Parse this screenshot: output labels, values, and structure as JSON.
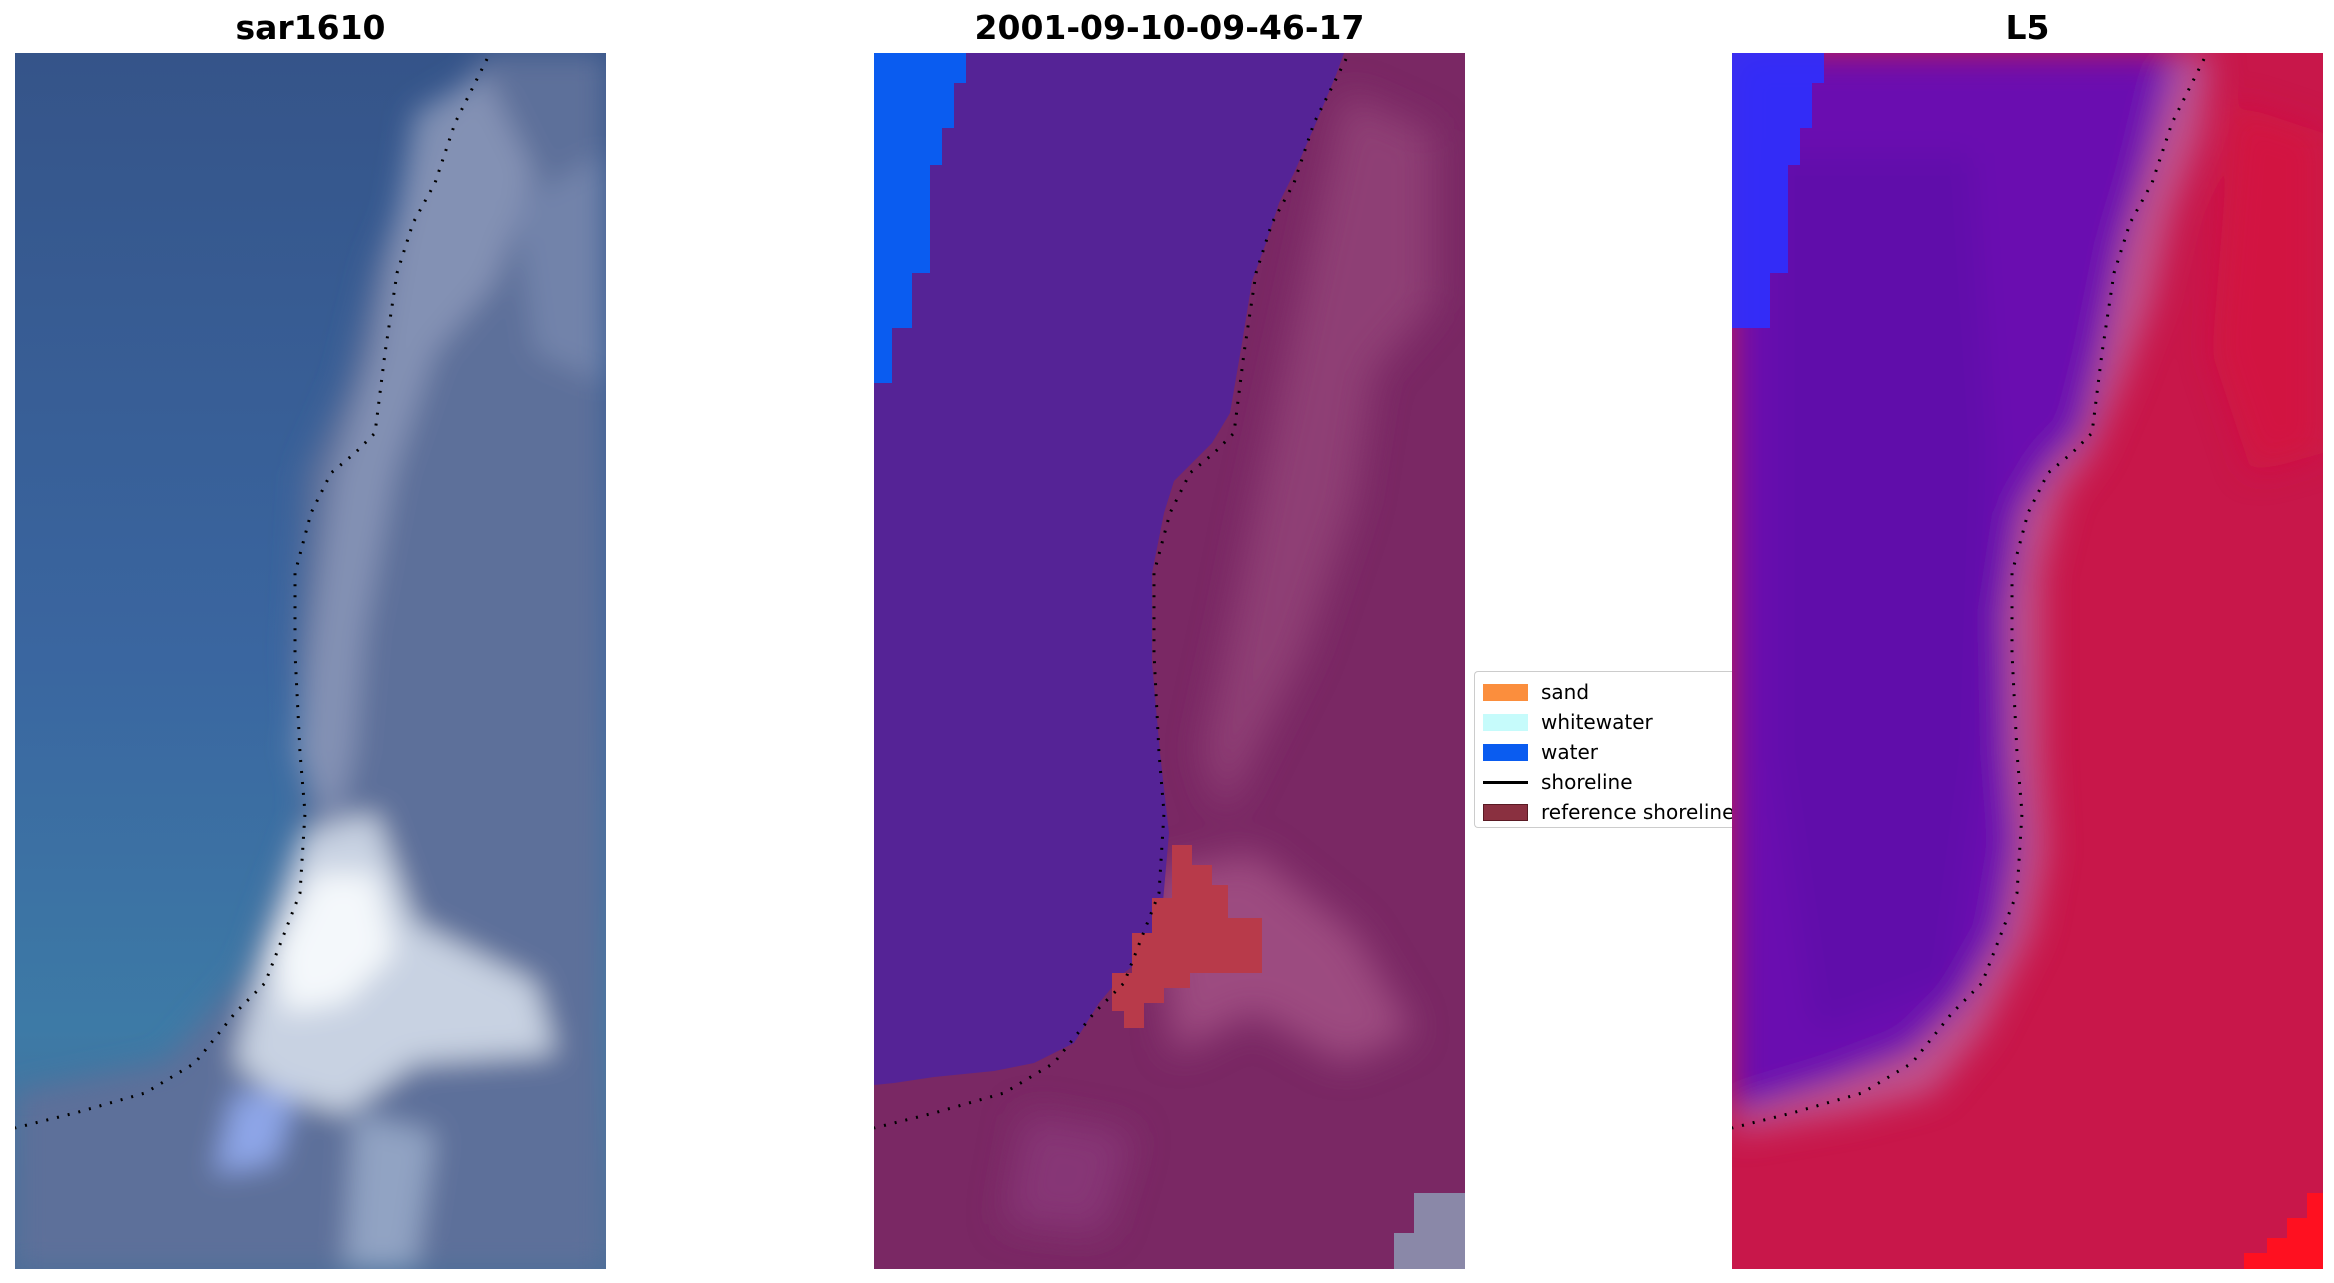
{
  "panels": [
    {
      "title": "sar1610"
    },
    {
      "title": "2001-09-10-09-46-17"
    },
    {
      "title": "L5"
    }
  ],
  "legend": {
    "items": [
      {
        "label": "sand",
        "color": "#fb8e3d",
        "kind": "patch"
      },
      {
        "label": "whitewater",
        "color": "#c6fbfb",
        "kind": "patch"
      },
      {
        "label": "water",
        "color": "#0a5cf0",
        "kind": "patch"
      },
      {
        "label": "shoreline",
        "color": "#000000",
        "kind": "line"
      },
      {
        "label": "reference shoreline",
        "color": "#8a3040",
        "kind": "patch"
      }
    ]
  },
  "colors": {
    "rgb_water": "#3a5d96",
    "rgb_land": "#5a6f9a",
    "rgb_whitewater": "#f4f8fb",
    "class_water_overlay": "#552396",
    "class_land": "#7a2864",
    "class_water_pure": "#0a5cf0",
    "class_reference": "#b83a4a",
    "index_water": "#6a10b0",
    "index_land": "#c8174a",
    "index_edge": "#ff1020",
    "index_water_pure": "#2d30ff"
  }
}
